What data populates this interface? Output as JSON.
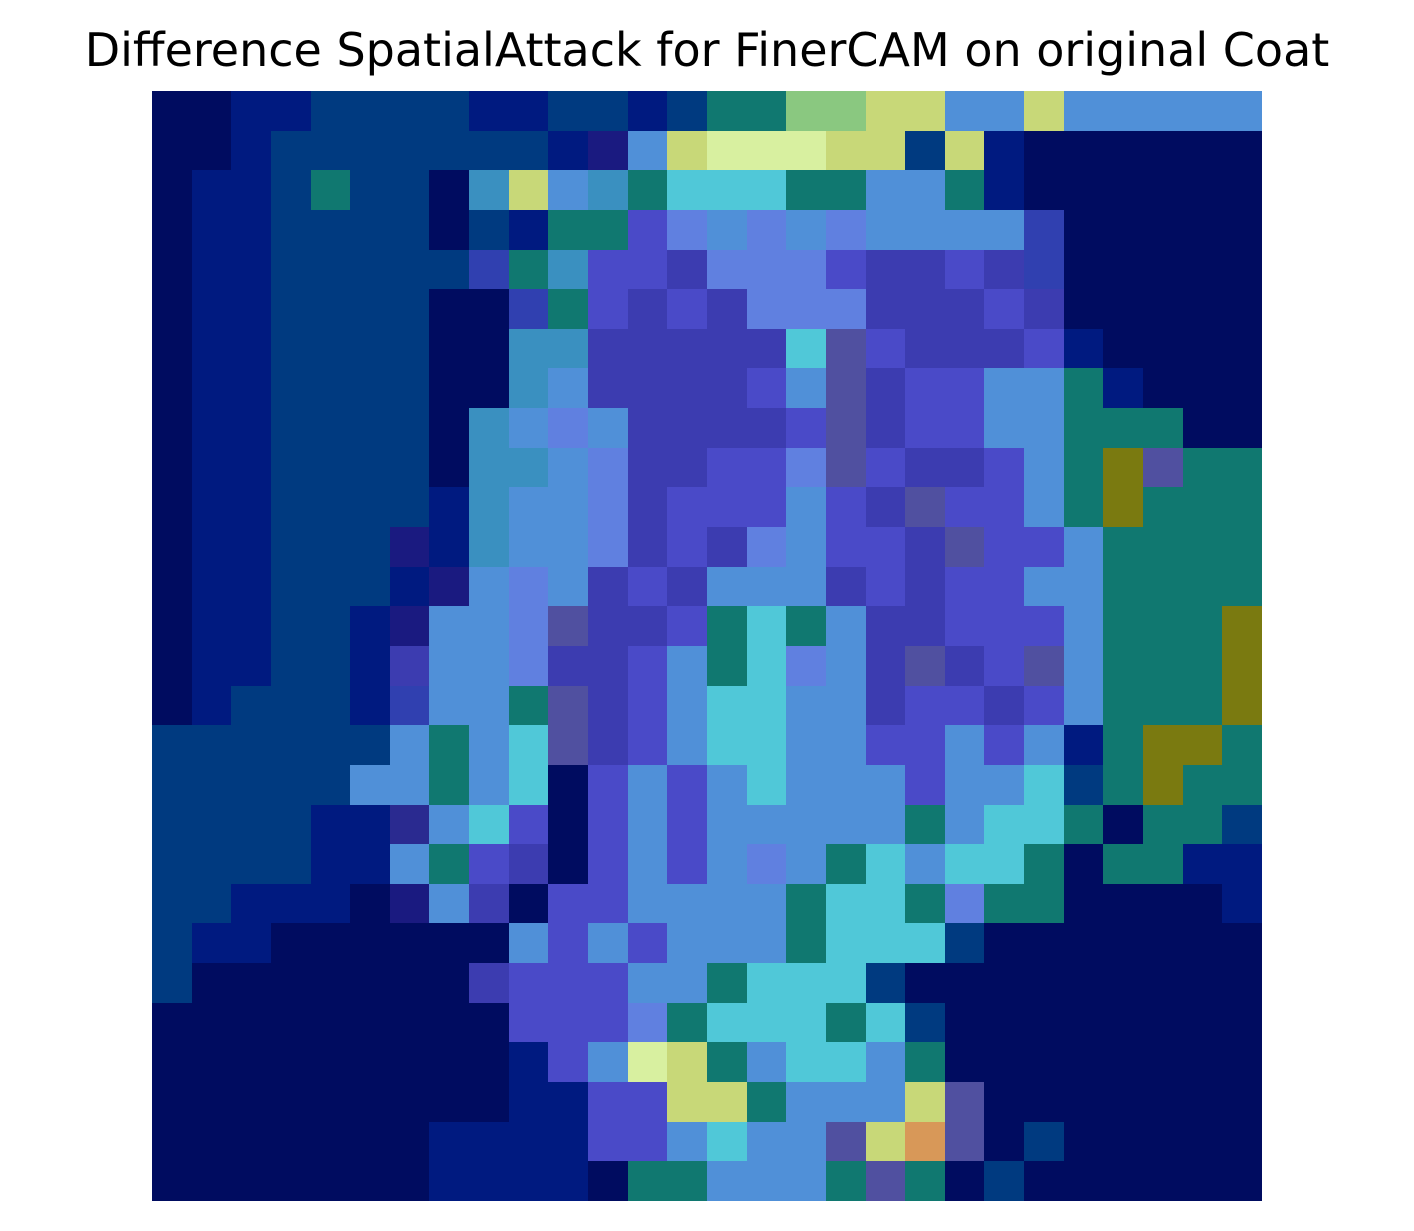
{
  "title": "Difference SpatialAttack for FinerCAM on original Coat",
  "image": {
    "description_colormap": "jet overlay on grayscale coat",
    "grid_size": [
      28,
      28
    ],
    "palette": {
      "deep_navy": "#000040",
      "navy": "#001a80",
      "blue": "#2038b0",
      "indigo": "#4040c0",
      "light_blue": "#60a0e0",
      "cyan": "#60d0e0",
      "aqua": "#80e8d0",
      "green": "#70c090",
      "olive": "#808000",
      "yellow_green": "#c8d870",
      "orange": "#d89858",
      "teal": "#108070"
    }
  }
}
